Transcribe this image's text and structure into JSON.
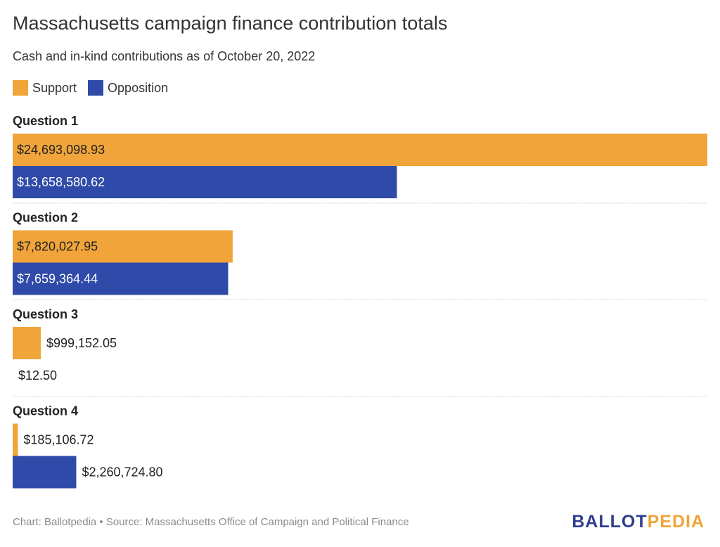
{
  "title": "Massachusetts campaign finance contribution totals",
  "subtitle": "Cash and in-kind contributions as of October 20, 2022",
  "footer": "Chart: Ballotpedia • Source: Massachusetts Office of Campaign and Political Finance",
  "logo": {
    "part1": "BALLOT",
    "part2": "PEDIA"
  },
  "colors": {
    "support": "#f0a43a",
    "opposition": "#2f4aa8"
  },
  "chart_data": {
    "type": "bar",
    "orientation": "horizontal",
    "grouping": "grouped",
    "categories": [
      "Question 1",
      "Question 2",
      "Question 3",
      "Question 4"
    ],
    "series": [
      {
        "name": "Support",
        "values": [
          24693098.93,
          7820027.95,
          999152.05,
          185106.72
        ],
        "labels": [
          "$24,693,098.93",
          "$7,820,027.95",
          "$999,152.05",
          "$185,106.72"
        ]
      },
      {
        "name": "Opposition",
        "values": [
          13658580.62,
          7659364.44,
          12.5,
          2260724.8
        ],
        "labels": [
          "$13,658,580.62",
          "$7,659,364.44",
          "$12.50",
          "$2,260,724.80"
        ]
      }
    ],
    "xlim": [
      0,
      24693098.93
    ],
    "legend": "top-left",
    "grid": false
  }
}
